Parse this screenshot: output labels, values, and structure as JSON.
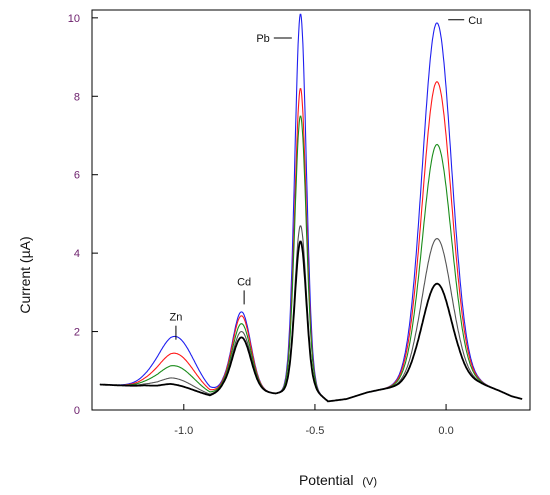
{
  "chart_data": {
    "type": "line",
    "title": "",
    "xlabel": "Potential",
    "xlabel_unit": "(V)",
    "ylabel": "Current (µA)",
    "xlim": [
      -1.35,
      0.32
    ],
    "ylim": [
      0,
      10.2
    ],
    "x_ticks": [
      -1.0,
      -0.5,
      0.0
    ],
    "x_tick_labels": [
      "-1.0",
      "-0.5",
      "0.0"
    ],
    "y_ticks": [
      0,
      2,
      4,
      6,
      8,
      10
    ],
    "y_tick_labels": [
      "0",
      "2",
      "4",
      "6",
      "8",
      "10"
    ],
    "grid": false,
    "legend": "none",
    "peak_labels": [
      {
        "text": "Zn",
        "x": -1.03,
        "y": 2.15
      },
      {
        "text": "Cd",
        "x": -0.77,
        "y": 3.05
      },
      {
        "text": "Pb",
        "x": -0.55,
        "y": 10.2
      },
      {
        "text": "Cu",
        "x": -0.03,
        "y": 9.9
      }
    ],
    "baseline": {
      "x": [
        -1.32,
        -1.22,
        -1.15,
        -1.1,
        -1.05,
        -0.9,
        -0.85,
        -0.75,
        -0.65,
        -0.6,
        -0.5,
        -0.45,
        -0.38,
        -0.3,
        -0.25,
        -0.18,
        -0.12,
        0.05,
        0.13,
        0.2,
        0.25,
        0.29
      ],
      "y": [
        0.65,
        0.62,
        0.6,
        0.55,
        0.55,
        0.35,
        0.5,
        0.5,
        0.42,
        0.5,
        0.5,
        0.22,
        0.28,
        0.45,
        0.52,
        0.6,
        0.72,
        0.82,
        0.68,
        0.5,
        0.35,
        0.28
      ]
    },
    "peak_positions": [
      -1.03,
      -0.78,
      -0.555,
      -0.035
    ],
    "peak_widths": [
      0.07,
      0.035,
      0.022,
      0.055
    ],
    "series": [
      {
        "color": "#1f1ff0",
        "peak_heights": [
          1.35,
          2.0,
          9.6,
          9.1
        ]
      },
      {
        "color": "#ff1a1a",
        "peak_heights": [
          0.92,
          1.9,
          7.7,
          7.6
        ]
      },
      {
        "color": "#1a8c1a",
        "peak_heights": [
          0.6,
          1.7,
          7.0,
          6.0
        ]
      },
      {
        "color": "#555555",
        "peak_heights": [
          0.28,
          1.5,
          4.2,
          3.6
        ]
      },
      {
        "color": "#000000",
        "peak_heights": [
          0.12,
          1.35,
          3.8,
          2.45
        ]
      }
    ]
  }
}
